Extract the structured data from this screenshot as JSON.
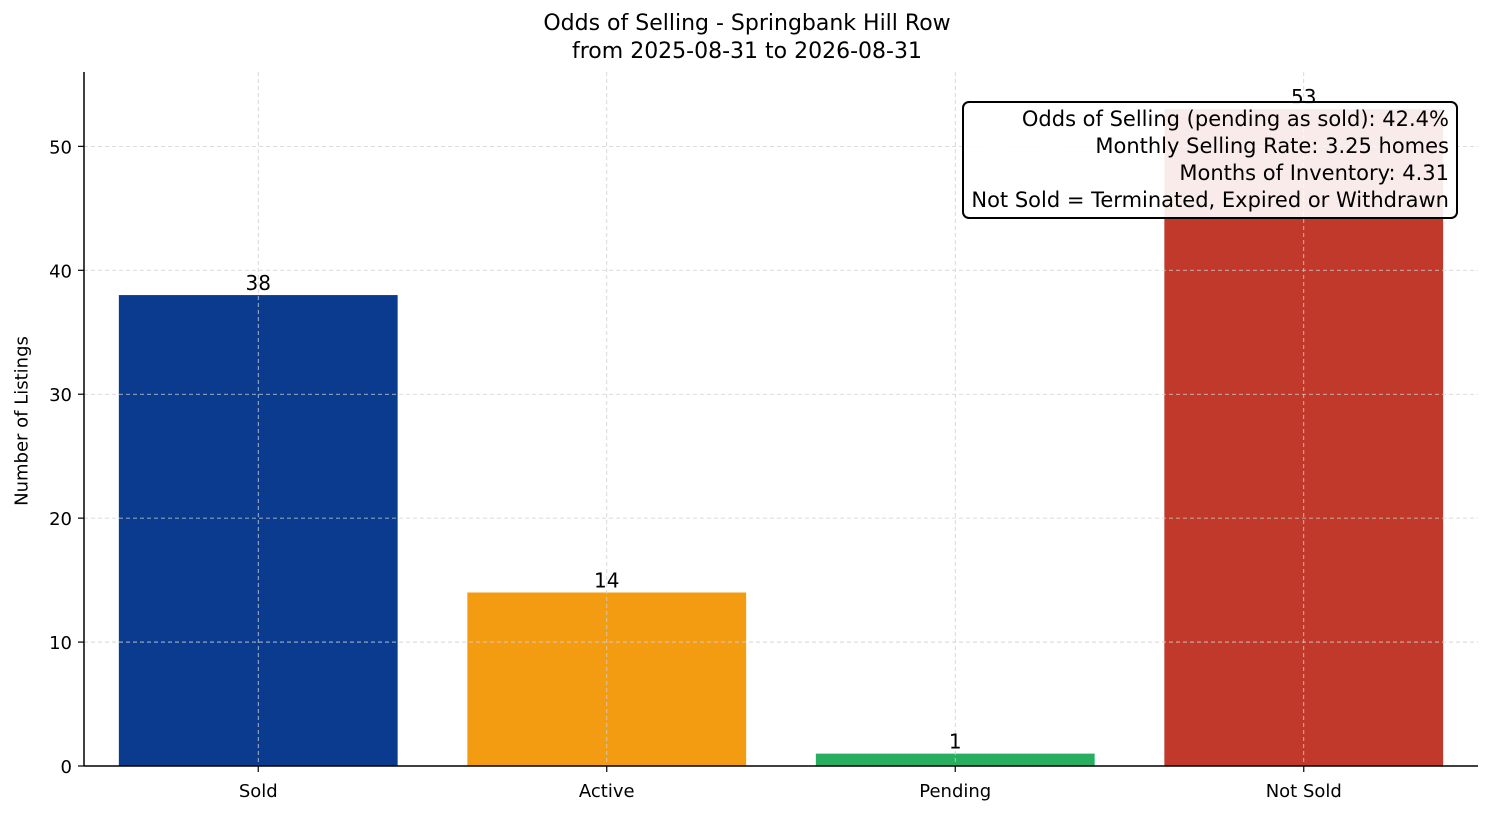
{
  "chart_data": {
    "type": "bar",
    "title": "Odds of Selling - Springbank Hill Row",
    "subtitle": "from 2025-08-31 to 2026-08-31",
    "xlabel": "",
    "ylabel": "Number of Listings",
    "categories": [
      "Sold",
      "Active",
      "Pending",
      "Not Sold"
    ],
    "values": [
      38,
      14,
      1,
      53
    ],
    "colors": [
      "#0b3b8f",
      "#f39c12",
      "#27ae60",
      "#c0392b"
    ],
    "ylim": [
      0,
      56
    ],
    "yticks": [
      0,
      10,
      20,
      30,
      40,
      50
    ],
    "grid": true,
    "annotations": [
      "Odds of Selling (pending as sold): 42.4%",
      "Monthly Selling Rate: 3.25 homes",
      "Months of Inventory: 4.31",
      "Not Sold = Terminated, Expired or Withdrawn"
    ],
    "annotation_placement": "top-right"
  }
}
